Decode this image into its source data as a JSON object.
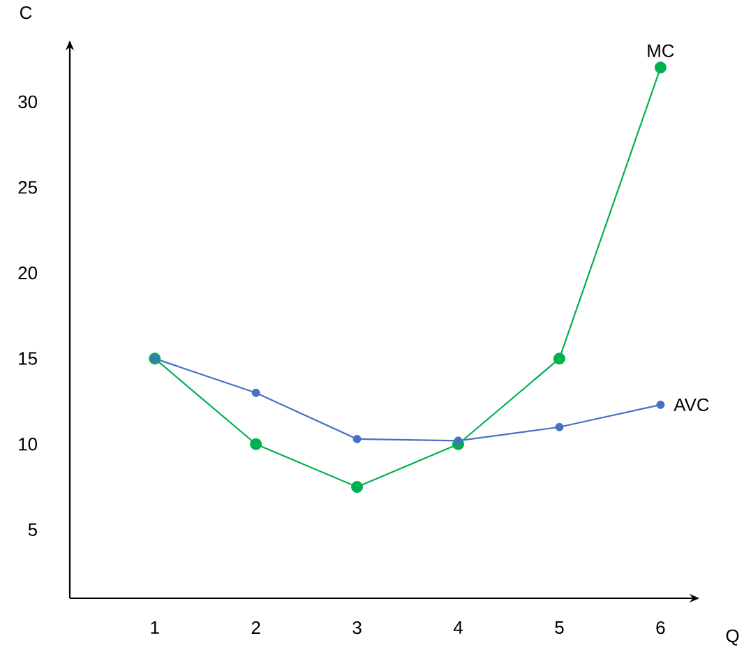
{
  "chart_data": {
    "type": "line",
    "xlabel": "Q",
    "ylabel": "C",
    "x": [
      1,
      2,
      3,
      4,
      5,
      6
    ],
    "series": [
      {
        "name": "MC",
        "color": "#00b050",
        "values": [
          15,
          10,
          7.5,
          10,
          15,
          32
        ]
      },
      {
        "name": "AVC",
        "color": "#4472c4",
        "values": [
          15,
          13,
          10.3,
          10.2,
          11,
          12.3
        ]
      }
    ],
    "xlim": [
      0.16,
      6.37
    ],
    "ylim": [
      1,
      33.5
    ],
    "xticks": [
      1,
      2,
      3,
      4,
      5,
      6
    ],
    "yticks": [
      5,
      10,
      15,
      20,
      25,
      30
    ],
    "grid": false,
    "legend": false,
    "marker": "circle",
    "line_style": "solid"
  }
}
